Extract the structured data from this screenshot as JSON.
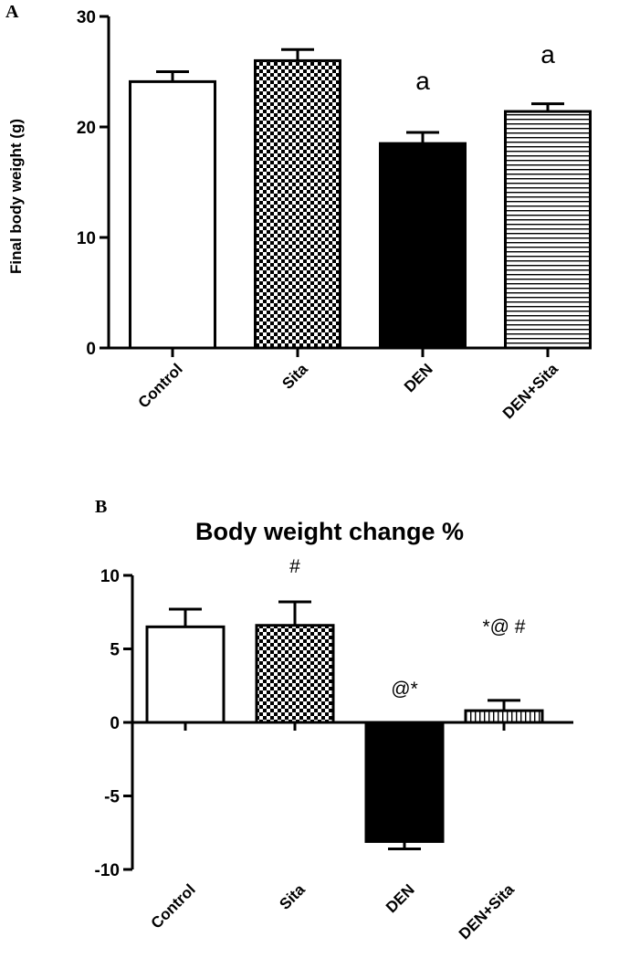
{
  "chart_data": [
    {
      "panel": "A",
      "type": "bar",
      "title": "",
      "ylabel": "Final body weight (g)",
      "xlabel": "",
      "ylim": [
        0,
        30
      ],
      "yticks": [
        0,
        10,
        20,
        30
      ],
      "categories": [
        "Control",
        "Sita",
        "DEN",
        "DEN+Sita"
      ],
      "values": [
        24.1,
        26.0,
        18.5,
        21.4
      ],
      "errors": [
        0.9,
        1.0,
        1.0,
        0.7
      ],
      "annotations": [
        "",
        "",
        "a",
        "a"
      ],
      "patterns": [
        "white",
        "checker",
        "black",
        "hstripes"
      ]
    },
    {
      "panel": "B",
      "type": "bar",
      "title": "Body weight change %",
      "ylabel": "",
      "xlabel": "",
      "ylim": [
        -10,
        10
      ],
      "yticks": [
        -10,
        -5,
        0,
        5,
        10
      ],
      "ytick_labels": [
        "-10",
        "-5",
        "0",
        "5",
        "10"
      ],
      "categories": [
        "Control",
        "Sita",
        "DEN",
        "DEN+Sita"
      ],
      "values": [
        6.5,
        6.6,
        -8.1,
        0.8
      ],
      "errors": [
        1.2,
        1.6,
        0.5,
        0.7
      ],
      "annotations": [
        "",
        "#",
        "@*",
        "*@ #"
      ],
      "patterns": [
        "white",
        "checker",
        "black",
        "vstripes"
      ]
    }
  ]
}
